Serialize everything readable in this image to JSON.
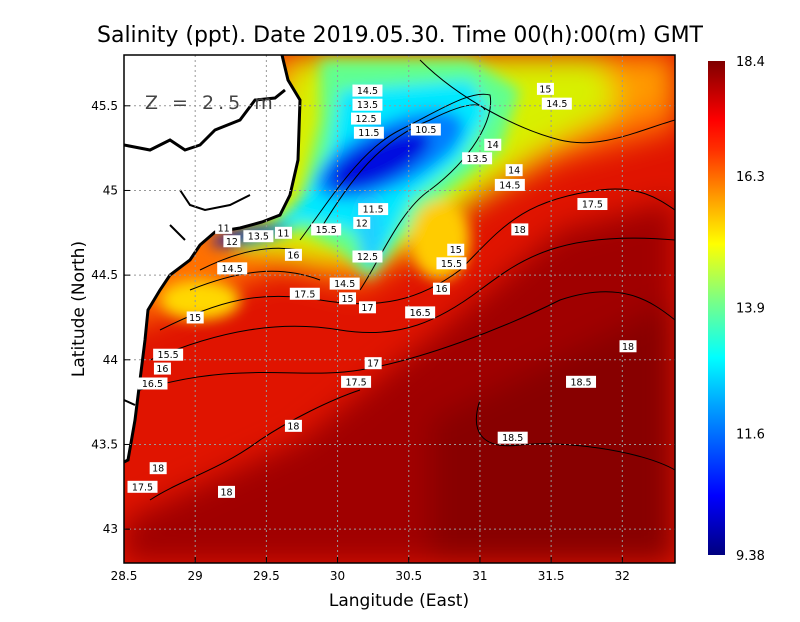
{
  "chart_data": {
    "type": "heatmap",
    "title": "Salinity (ppt). Date 2019.05.30. Time 00(h):00(m) GMT",
    "xlabel": "Langitude (East)",
    "ylabel": "Latitude (North)",
    "annotation": "Z = 2.5 m",
    "xlim": [
      28.5,
      32.37
    ],
    "ylim": [
      42.8,
      45.8
    ],
    "xticks": [
      28.5,
      29,
      29.5,
      30,
      30.5,
      31,
      31.5,
      32
    ],
    "xtick_labels": [
      "28.5",
      "29",
      "29.5",
      "30",
      "30.5",
      "31",
      "31.5",
      "32"
    ],
    "yticks": [
      43,
      43.5,
      44,
      44.5,
      45,
      45.5
    ],
    "ytick_labels": [
      "43",
      "43.5",
      "44",
      "44.5",
      "45",
      "45.5"
    ],
    "grid": true,
    "colorbar": {
      "min": 9.38,
      "max": 18.4,
      "ticks": [
        18.4,
        16.3,
        13.9,
        11.6,
        9.38
      ],
      "tick_labels": [
        "18.4",
        "16.3",
        "13.9",
        "11.6",
        "9.38"
      ],
      "colors": [
        "#00007f",
        "#0000ff",
        "#00a0ff",
        "#00ffff",
        "#80ff80",
        "#ffff00",
        "#ffa000",
        "#ff3000",
        "#ff0000",
        "#7f0000"
      ]
    },
    "contour_labels": [
      {
        "text": "14.5",
        "lon": 30.21,
        "lat": 45.59
      },
      {
        "text": "13.5",
        "lon": 30.21,
        "lat": 45.53
      },
      {
        "text": "12.5",
        "lon": 30.2,
        "lat": 45.46
      },
      {
        "text": "11.5",
        "lon": 30.22,
        "lat": 45.4
      },
      {
        "text": "15",
        "lon": 31.46,
        "lat": 45.6
      },
      {
        "text": "14.5",
        "lon": 31.54,
        "lat": 45.56
      },
      {
        "text": "10.5",
        "lon": 30.62,
        "lat": 45.36
      },
      {
        "text": "14",
        "lon": 31.09,
        "lat": 45.27
      },
      {
        "text": "13.5",
        "lon": 30.98,
        "lat": 45.19
      },
      {
        "text": "14",
        "lon": 31.24,
        "lat": 45.12
      },
      {
        "text": "14.5",
        "lon": 31.21,
        "lat": 45.08
      },
      {
        "text": "17.5",
        "lon": 31.79,
        "lat": 44.92
      },
      {
        "text": "18",
        "lon": 31.28,
        "lat": 44.77
      },
      {
        "text": "11.5",
        "lon": 30.25,
        "lat": 44.89
      },
      {
        "text": "12",
        "lon": 30.17,
        "lat": 44.82
      },
      {
        "text": "15.5",
        "lon": 29.92,
        "lat": 44.77
      },
      {
        "text": "12.5",
        "lon": 30.21,
        "lat": 44.61
      },
      {
        "text": "14.5",
        "lon": 30.05,
        "lat": 44.45
      },
      {
        "text": "15",
        "lon": 30.07,
        "lat": 44.41
      },
      {
        "text": "15",
        "lon": 30.83,
        "lat": 44.65
      },
      {
        "text": "15.5",
        "lon": 30.8,
        "lat": 44.57
      },
      {
        "text": "16",
        "lon": 30.73,
        "lat": 44.42
      },
      {
        "text": "16.5",
        "lon": 30.58,
        "lat": 44.28
      },
      {
        "text": "17",
        "lon": 30.21,
        "lat": 44.31
      },
      {
        "text": "17.5",
        "lon": 29.77,
        "lat": 44.39
      },
      {
        "text": "16",
        "lon": 29.69,
        "lat": 44.62
      },
      {
        "text": "11",
        "lon": 29.62,
        "lat": 44.75
      },
      {
        "text": "13.5",
        "lon": 29.5,
        "lat": 44.73
      },
      {
        "text": "12",
        "lon": 29.3,
        "lat": 44.7
      },
      {
        "text": "11",
        "lon": 29.2,
        "lat": 44.72
      },
      {
        "text": "14.5",
        "lon": 29.26,
        "lat": 44.54
      },
      {
        "text": "15",
        "lon": 29.0,
        "lat": 44.25
      },
      {
        "text": "15.5",
        "lon": 28.81,
        "lat": 44.03
      },
      {
        "text": "16",
        "lon": 28.77,
        "lat": 43.96
      },
      {
        "text": "16.5",
        "lon": 28.7,
        "lat": 43.86
      },
      {
        "text": "17",
        "lon": 30.25,
        "lat": 43.98
      },
      {
        "text": "17.5",
        "lon": 30.13,
        "lat": 43.87
      },
      {
        "text": "18.5",
        "lon": 31.71,
        "lat": 43.87
      },
      {
        "text": "18",
        "lon": 32.04,
        "lat": 44.08
      },
      {
        "text": "18",
        "lon": 29.69,
        "lat": 43.61
      },
      {
        "text": "18.5",
        "lon": 31.23,
        "lat": 43.54
      },
      {
        "text": "18",
        "lon": 28.74,
        "lat": 43.36
      },
      {
        "text": "17.5",
        "lon": 28.63,
        "lat": 43.25
      },
      {
        "text": "18",
        "lon": 29.22,
        "lat": 43.22
      }
    ]
  }
}
